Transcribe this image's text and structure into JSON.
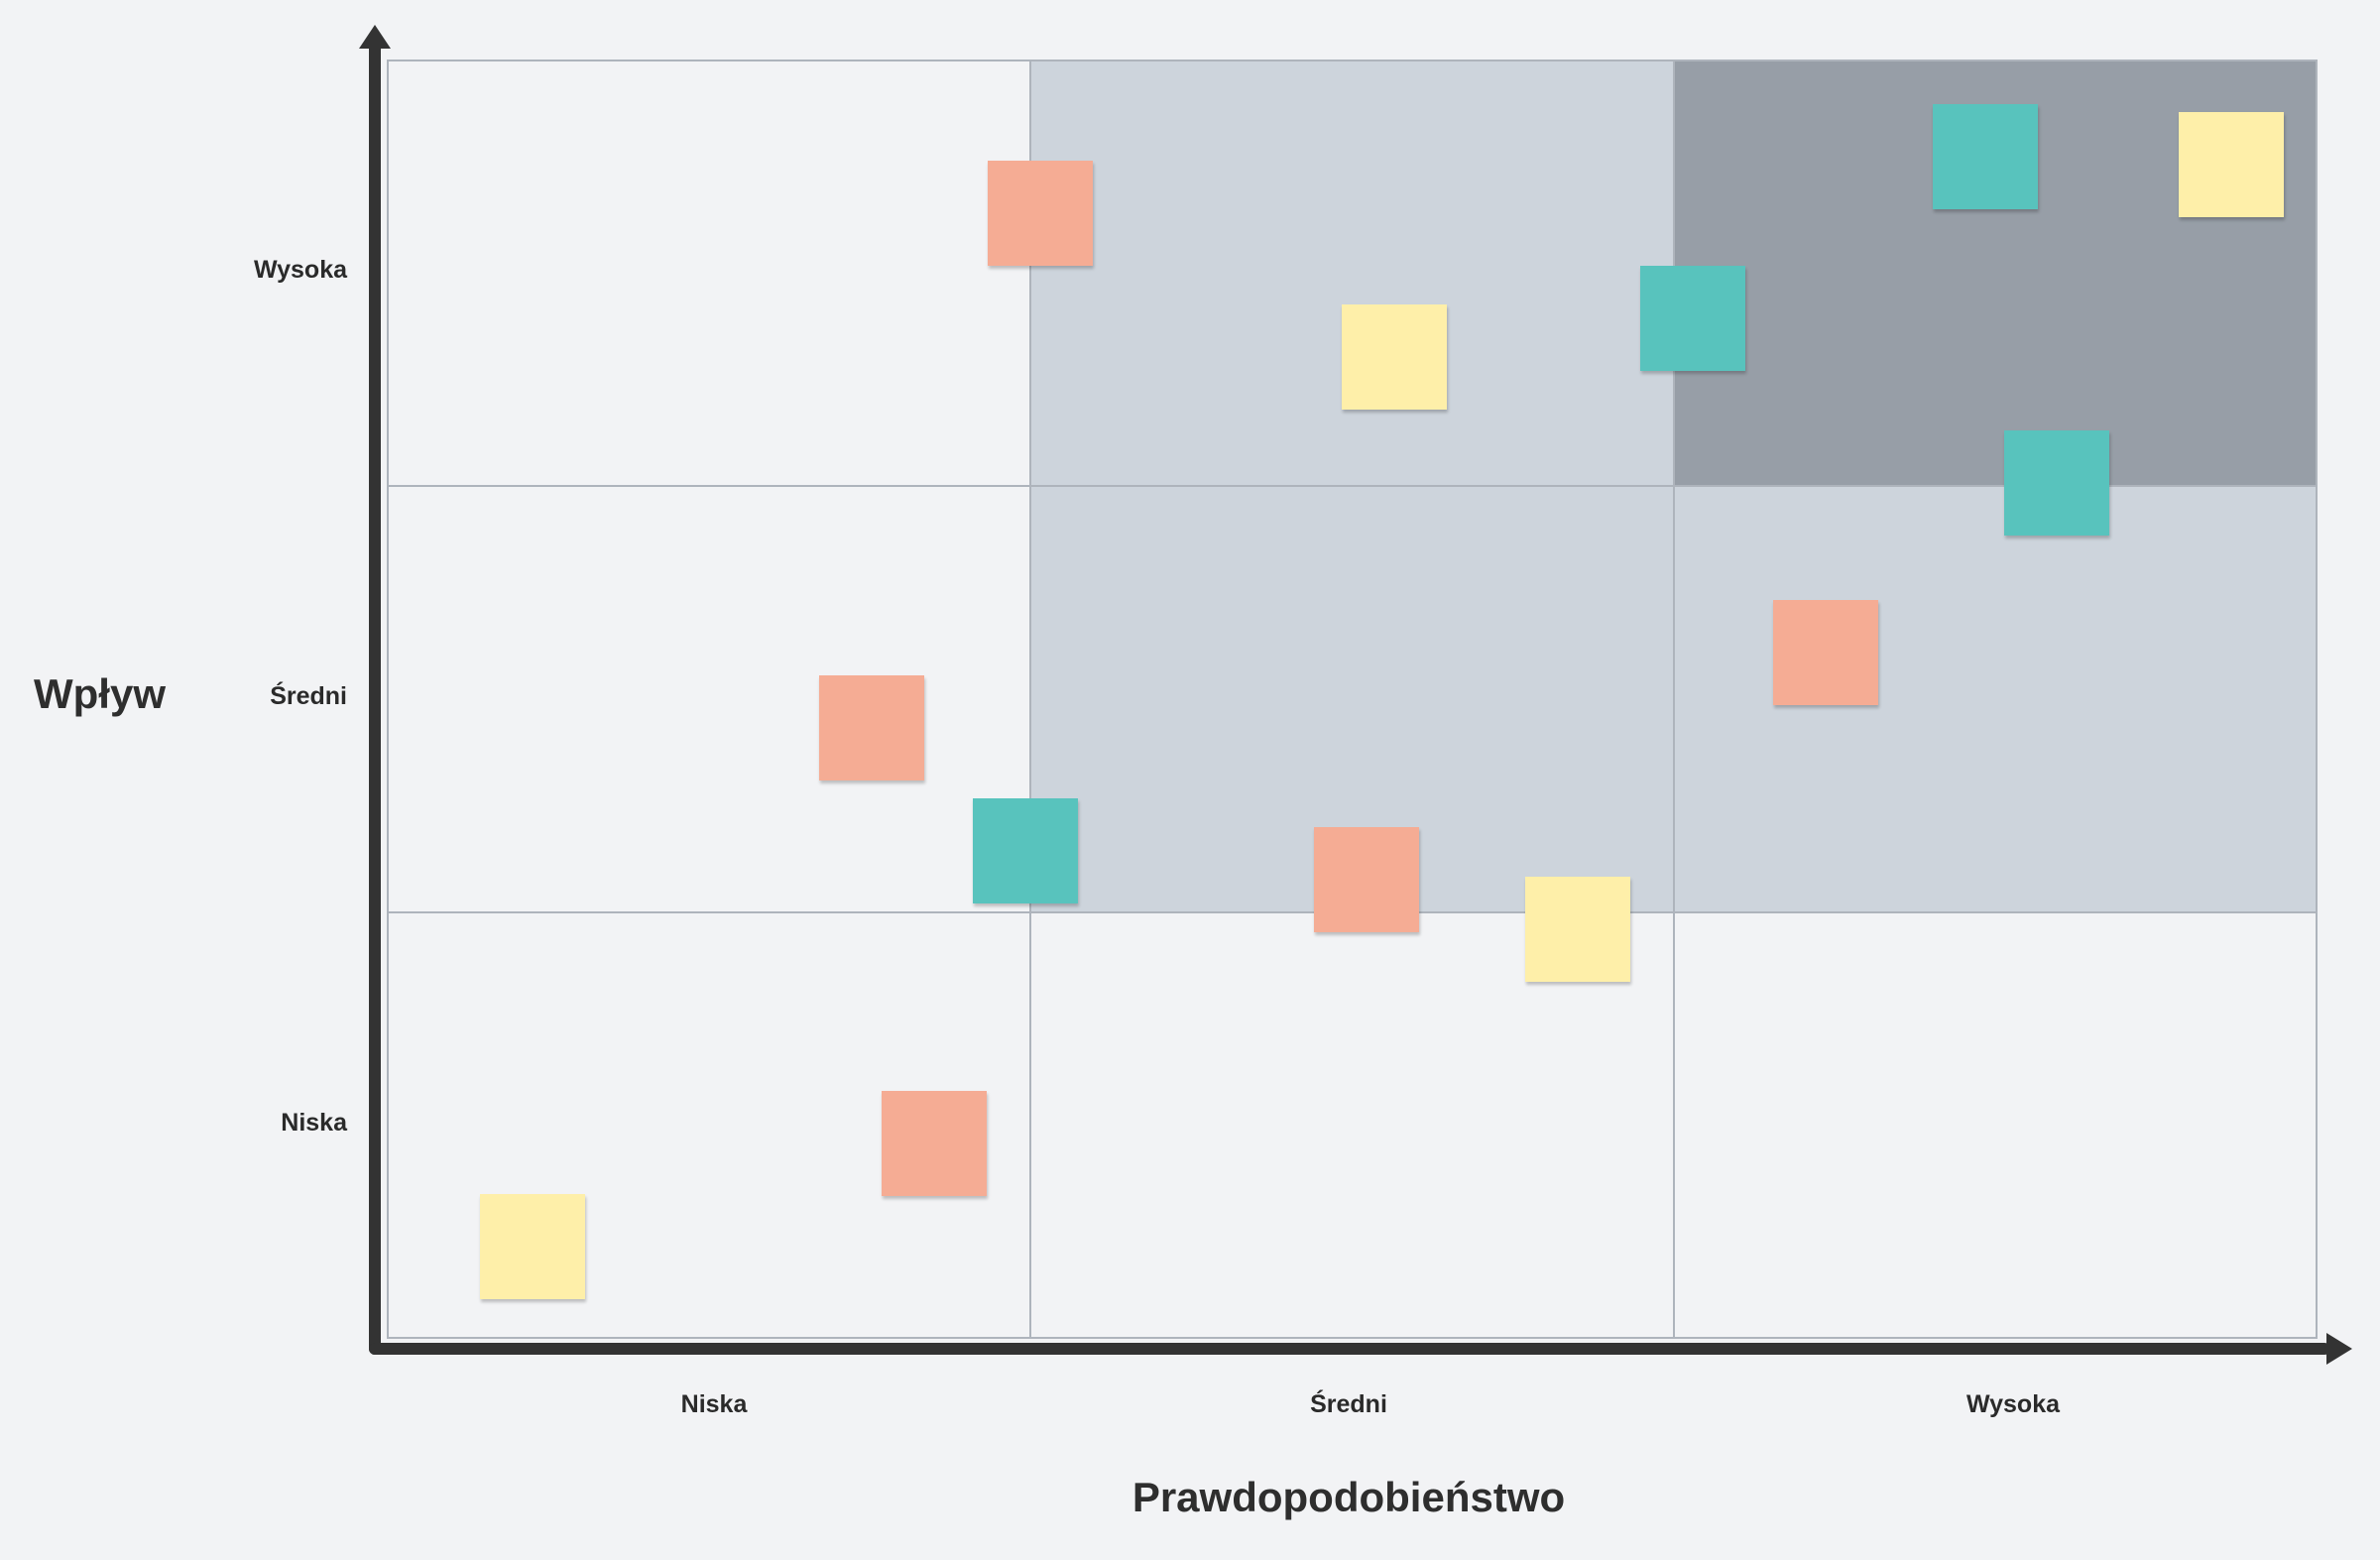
{
  "diagram": {
    "y_axis_title": "Wpływ",
    "x_axis_title": "Prawdopodobieństwo",
    "y_levels": [
      "Wysoka",
      "Średni",
      "Niska"
    ],
    "x_levels": [
      "Niska",
      "Średni",
      "Wysoka"
    ],
    "grid_shading": [
      [
        "light",
        "mid",
        "dark"
      ],
      [
        "light",
        "mid",
        "mid"
      ],
      [
        "light",
        "light",
        "light"
      ]
    ]
  },
  "colors": {
    "coral": "#f5ac94",
    "teal": "#58c3bd",
    "yellow": "#feefa9",
    "cell_light": "#f2f3f5",
    "cell_mid": "#cdd4dc",
    "cell_dark": "#979ea7",
    "axis": "#333333"
  }
}
